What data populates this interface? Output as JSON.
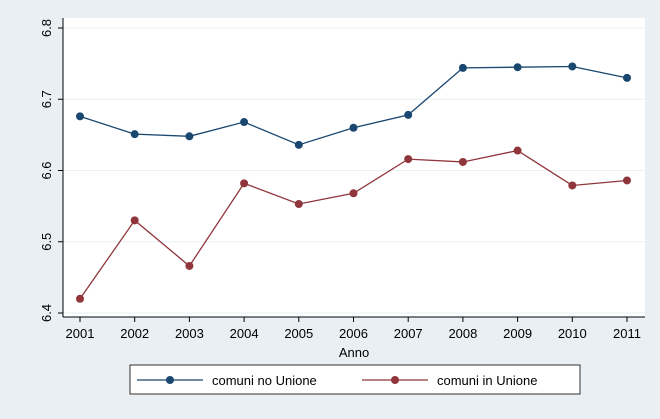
{
  "chart_data": {
    "type": "line",
    "title": "",
    "xlabel": "Anno",
    "ylabel": "",
    "x": [
      2001,
      2002,
      2003,
      2004,
      2005,
      2006,
      2007,
      2008,
      2009,
      2010,
      2011
    ],
    "x_tick_labels": [
      "2001",
      "2002",
      "2003",
      "2004",
      "2005",
      "2006",
      "2007",
      "2008",
      "2009",
      "2010",
      "2011"
    ],
    "y_ticks": [
      6.4,
      6.5,
      6.6,
      6.7,
      6.8
    ],
    "y_tick_labels": [
      "6.4",
      "6.5",
      "6.6",
      "6.7",
      "6.8"
    ],
    "xlim": [
      2001,
      2011
    ],
    "ylim": [
      6.4,
      6.8
    ],
    "grid": "horizontal",
    "legend_position": "bottom",
    "series": [
      {
        "name": "comuni no Unione",
        "color": "#1a476f",
        "values": [
          6.676,
          6.651,
          6.648,
          6.668,
          6.636,
          6.66,
          6.678,
          6.744,
          6.745,
          6.746,
          6.73
        ]
      },
      {
        "name": "comuni in Unione",
        "color": "#90353b",
        "values": [
          6.42,
          6.53,
          6.466,
          6.582,
          6.553,
          6.568,
          6.616,
          6.612,
          6.628,
          6.579,
          6.586
        ]
      }
    ]
  }
}
